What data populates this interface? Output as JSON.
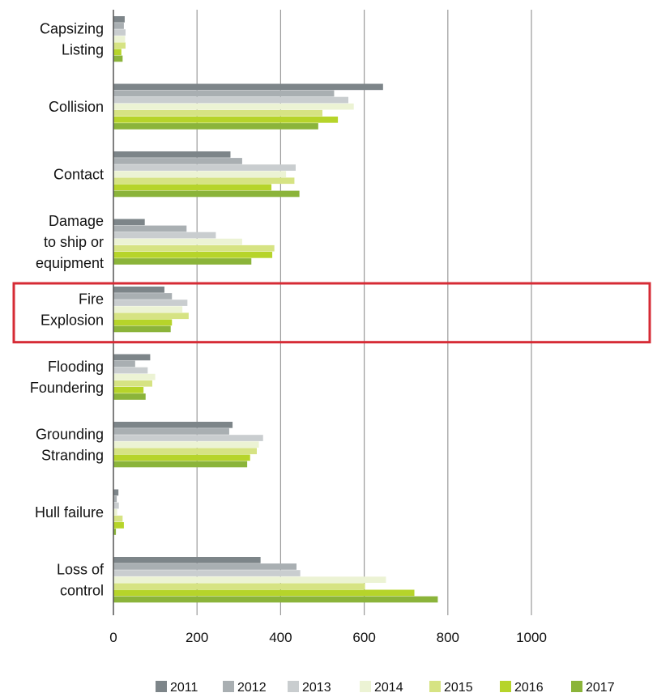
{
  "chart_data": {
    "type": "bar",
    "orientation": "horizontal",
    "title": "",
    "xlabel": "",
    "ylabel": "",
    "xlim": [
      0,
      1000
    ],
    "xticks": [
      0,
      200,
      400,
      600,
      800,
      1000
    ],
    "grid": true,
    "legend_position": "bottom",
    "categories": [
      [
        "Capsizing",
        "Listing"
      ],
      [
        "Collision"
      ],
      [
        "Contact"
      ],
      [
        "Damage",
        "to ship or",
        "equipment"
      ],
      [
        "Fire",
        "Explosion"
      ],
      [
        "Flooding",
        "Foundering"
      ],
      [
        "Grounding",
        "Stranding"
      ],
      [
        "Hull failure"
      ],
      [
        "Loss of",
        "control"
      ]
    ],
    "highlighted_category_index": 4,
    "highlight_color": "#d62b35",
    "series": [
      {
        "name": "2011",
        "color": "#7d8589",
        "values": [
          27,
          645,
          280,
          75,
          122,
          88,
          285,
          12,
          352
        ]
      },
      {
        "name": "2012",
        "color": "#a9afb2",
        "values": [
          25,
          528,
          308,
          175,
          140,
          52,
          277,
          8,
          438
        ]
      },
      {
        "name": "2013",
        "color": "#c9cdcf",
        "values": [
          29,
          562,
          436,
          245,
          177,
          82,
          358,
          13,
          447
        ]
      },
      {
        "name": "2014",
        "color": "#ecf3d4",
        "values": [
          28,
          575,
          413,
          308,
          165,
          100,
          348,
          9,
          652
        ]
      },
      {
        "name": "2015",
        "color": "#d6e383",
        "values": [
          29,
          500,
          433,
          385,
          180,
          93,
          343,
          22,
          602
        ]
      },
      {
        "name": "2016",
        "color": "#b6d42a",
        "values": [
          19,
          537,
          378,
          380,
          140,
          72,
          327,
          25,
          720
        ]
      },
      {
        "name": "2017",
        "color": "#8bb43a",
        "values": [
          22,
          490,
          445,
          330,
          137,
          77,
          320,
          6,
          776
        ]
      }
    ]
  }
}
